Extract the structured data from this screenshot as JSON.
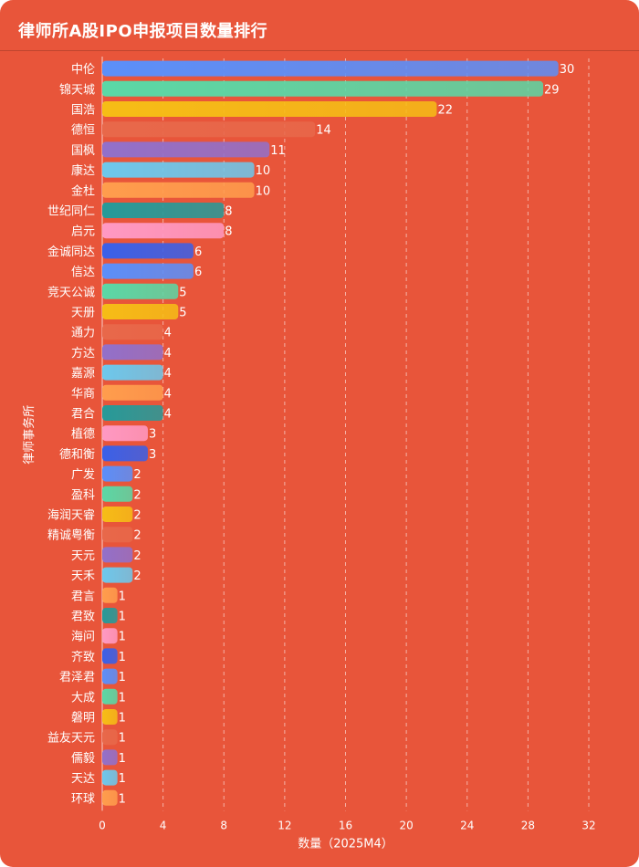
{
  "chart_data": {
    "type": "bar",
    "orientation": "horizontal",
    "title": "律师所A股IPO申报项目数量排行",
    "xlabel": "数量（2025M4）",
    "ylabel": "律师事务所",
    "xlim": [
      0,
      32
    ],
    "xticks": [
      "0",
      "4",
      "8",
      "12",
      "16",
      "20",
      "24",
      "28",
      "32"
    ],
    "grid": "vertical-dashed",
    "categories": [
      "中伦",
      "锦天城",
      "国浩",
      "德恒",
      "国枫",
      "康达",
      "金杜",
      "世纪同仁",
      "启元",
      "金诚同达",
      "信达",
      "竞天公诚",
      "天册",
      "通力",
      "方达",
      "嘉源",
      "华商",
      "君合",
      "植德",
      "德和衡",
      "广发",
      "盈科",
      "海润天睿",
      "精诚粤衡",
      "天元",
      "天禾",
      "君言",
      "君致",
      "海问",
      "齐致",
      "君泽君",
      "大成",
      "磐明",
      "益友天元",
      "儒毅",
      "天达",
      "环球"
    ],
    "values": [
      30,
      29,
      22,
      14,
      11,
      10,
      10,
      8,
      8,
      6,
      6,
      5,
      5,
      4,
      4,
      4,
      4,
      4,
      3,
      3,
      2,
      2,
      2,
      2,
      2,
      2,
      1,
      1,
      1,
      1,
      1,
      1,
      1,
      1,
      1,
      1,
      1
    ],
    "bar_colors": [
      "#5b8ff9",
      "#5ad8a6",
      "#f6bd16",
      "#e8684a",
      "#9270ca",
      "#6dc8ec",
      "#ff9d4d",
      "#269a99",
      "#ff99c3",
      "#3a60e8"
    ]
  }
}
